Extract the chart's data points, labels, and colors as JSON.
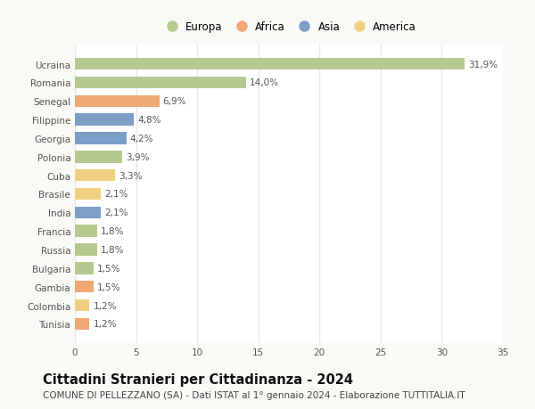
{
  "categories": [
    "Tunisia",
    "Colombia",
    "Gambia",
    "Bulgaria",
    "Russia",
    "Francia",
    "India",
    "Brasile",
    "Cuba",
    "Polonia",
    "Georgia",
    "Filippine",
    "Senegal",
    "Romania",
    "Ucraina"
  ],
  "values": [
    1.2,
    1.2,
    1.5,
    1.5,
    1.8,
    1.8,
    2.1,
    2.1,
    3.3,
    3.9,
    4.2,
    4.8,
    6.9,
    14.0,
    31.9
  ],
  "labels": [
    "1,2%",
    "1,2%",
    "1,5%",
    "1,5%",
    "1,8%",
    "1,8%",
    "2,1%",
    "2,1%",
    "3,3%",
    "3,9%",
    "4,2%",
    "4,8%",
    "6,9%",
    "14,0%",
    "31,9%"
  ],
  "continents": [
    "Africa",
    "America",
    "Africa",
    "Europa",
    "Europa",
    "Europa",
    "Asia",
    "America",
    "America",
    "Europa",
    "Asia",
    "Asia",
    "Africa",
    "Europa",
    "Europa"
  ],
  "continent_colors": {
    "Europa": "#b5c98e",
    "Africa": "#f0a875",
    "Asia": "#7b9fc7",
    "America": "#f0d080"
  },
  "legend_order": [
    "Europa",
    "Africa",
    "Asia",
    "America"
  ],
  "xlim": [
    0,
    35
  ],
  "xticks": [
    0,
    5,
    10,
    15,
    20,
    25,
    30,
    35
  ],
  "title": "Cittadini Stranieri per Cittadinanza - 2024",
  "subtitle": "COMUNE DI PELLEZZANO (SA) - Dati ISTAT al 1° gennaio 2024 - Elaborazione TUTTITALIA.IT",
  "background_color": "#f9f9f6",
  "plot_bg_color": "#ffffff",
  "bar_height": 0.65,
  "title_fontsize": 10.5,
  "subtitle_fontsize": 7.5,
  "label_fontsize": 7.5,
  "tick_fontsize": 7.5,
  "legend_fontsize": 8.5,
  "grid_color": "#e8e8e8",
  "bar_edge_color": "none",
  "label_color": "#555555",
  "tick_color": "#555555"
}
